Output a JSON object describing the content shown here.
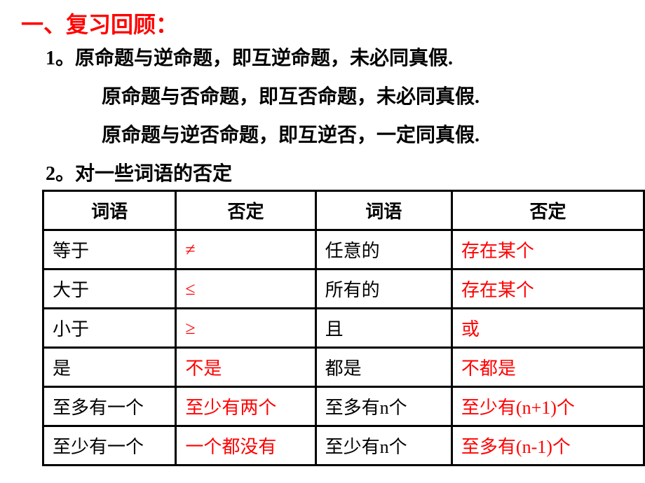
{
  "section_title": "一、复习回顾：",
  "line1": "1。原命题与逆命题，即互逆命题，未必同真假.",
  "line2": "原命题与否命题，即互否命题，未必同真假.",
  "line3": "原命题与逆否命题，即互逆否，一定同真假.",
  "subtitle": "2。对一些词语的否定",
  "table": {
    "headers": [
      "词语",
      "否定",
      "词语",
      "否定"
    ],
    "rows": [
      {
        "c1": "等于",
        "c2": "≠",
        "c3": "任意的",
        "c4": "存在某个"
      },
      {
        "c1": "大于",
        "c2": "≤",
        "c3": "所有的",
        "c4": "存在某个"
      },
      {
        "c1": "小于",
        "c2": "≥",
        "c3": "且",
        "c4": "或"
      },
      {
        "c1": "是",
        "c2": "不是",
        "c3": "都是",
        "c4": "不都是"
      },
      {
        "c1": "至多有一个",
        "c2": "至少有两个",
        "c3": "至多有n个",
        "c4": "至少有(n+1)个"
      },
      {
        "c1": "至少有一个",
        "c2": "一个都没有",
        "c3": "至少有n个",
        "c4": "至多有(n-1)个"
      }
    ]
  },
  "colors": {
    "red": "#ff0000",
    "black": "#000000",
    "border": "#000000",
    "background": "#ffffff"
  }
}
